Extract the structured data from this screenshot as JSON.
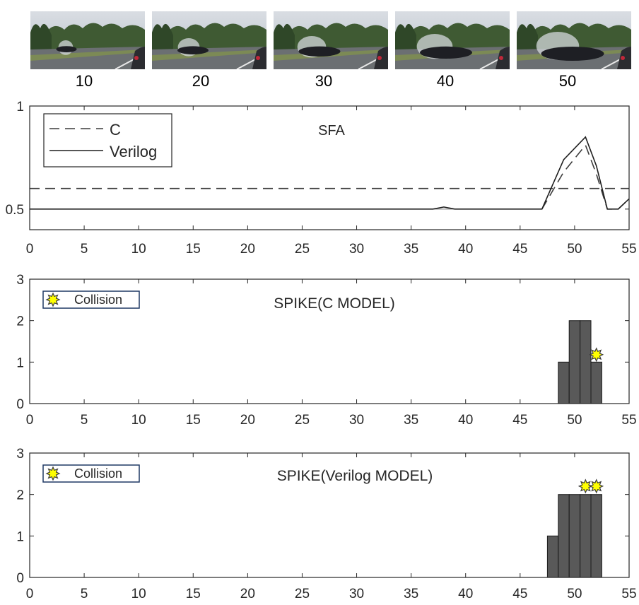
{
  "frames": [
    {
      "label": "10",
      "car_progress": 0.1
    },
    {
      "label": "20",
      "car_progress": 0.2
    },
    {
      "label": "30",
      "car_progress": 0.3
    },
    {
      "label": "40",
      "car_progress": 0.4
    },
    {
      "label": "50",
      "car_progress": 0.5
    }
  ],
  "chart_data": [
    {
      "type": "line",
      "title": "SFA",
      "xlabel": "",
      "ylabel": "",
      "xlim": [
        0,
        55
      ],
      "ylim": [
        0.4,
        1.0
      ],
      "xticks": [
        0,
        5,
        10,
        15,
        20,
        25,
        30,
        35,
        40,
        45,
        50,
        55
      ],
      "yticks": [
        0.5,
        1
      ],
      "ytick_labels": [
        "0.5",
        "1"
      ],
      "legend_position": "top-left",
      "series": [
        {
          "name": "C",
          "style": "dashed",
          "color": "#3c3c3c",
          "x": [
            0,
            55
          ],
          "y": [
            0.6,
            0.6
          ]
        },
        {
          "name": "C",
          "style": "dashed",
          "color": "#3c3c3c",
          "x": [
            47,
            49,
            51,
            52,
            53,
            54,
            55
          ],
          "y": [
            0.5,
            0.68,
            0.81,
            0.67,
            0.5,
            0.5,
            0.55
          ]
        },
        {
          "name": "Verilog",
          "style": "solid",
          "color": "#1e1e1e",
          "x": [
            0,
            37,
            38,
            39,
            47,
            49,
            51,
            52,
            53,
            54,
            55
          ],
          "y": [
            0.5,
            0.5,
            0.51,
            0.5,
            0.5,
            0.74,
            0.85,
            0.71,
            0.5,
            0.5,
            0.55
          ]
        }
      ]
    },
    {
      "type": "bar",
      "title": "SPIKE(C MODEL)",
      "xlabel": "",
      "ylabel": "",
      "xlim": [
        0,
        55
      ],
      "ylim": [
        0,
        3
      ],
      "xticks": [
        0,
        5,
        10,
        15,
        20,
        25,
        30,
        35,
        40,
        45,
        50,
        55
      ],
      "yticks": [
        0,
        1,
        2,
        3
      ],
      "bar_color": "#595959",
      "legend_position": "top-left",
      "legend_label": "Collision",
      "x": [
        49,
        50,
        51,
        52
      ],
      "values": [
        1,
        2,
        2,
        1
      ],
      "collision_markers": [
        {
          "x": 52,
          "y": 1.18
        }
      ]
    },
    {
      "type": "bar",
      "title": "SPIKE(Verilog MODEL)",
      "xlabel": "",
      "ylabel": "",
      "xlim": [
        0,
        55
      ],
      "ylim": [
        0,
        3
      ],
      "xticks": [
        0,
        5,
        10,
        15,
        20,
        25,
        30,
        35,
        40,
        45,
        50,
        55
      ],
      "yticks": [
        0,
        1,
        2,
        3
      ],
      "bar_color": "#595959",
      "legend_position": "top-left",
      "legend_label": "Collision",
      "x": [
        48,
        49,
        50,
        51,
        52
      ],
      "values": [
        1,
        2,
        2,
        2,
        2
      ],
      "collision_markers": [
        {
          "x": 51,
          "y": 2.2
        },
        {
          "x": 52,
          "y": 2.2
        }
      ]
    }
  ]
}
